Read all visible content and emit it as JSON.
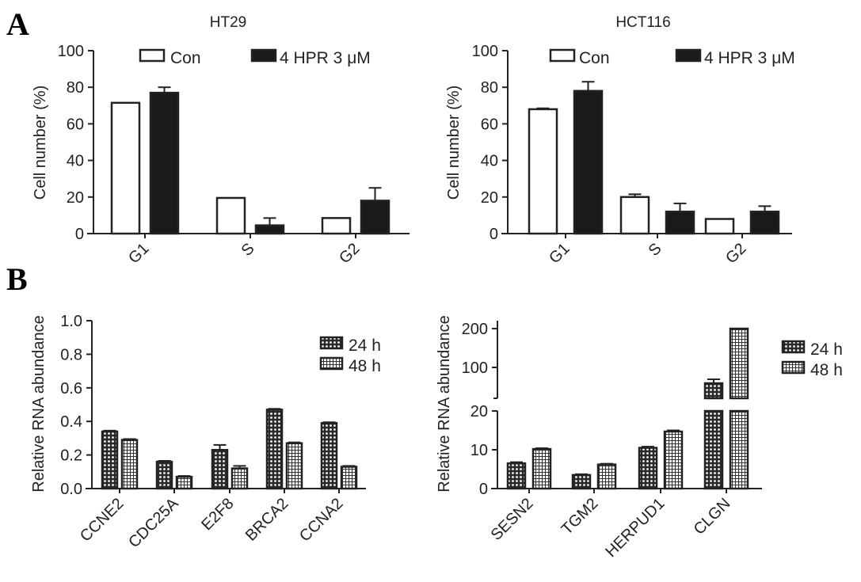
{
  "panel_letters": [
    "A",
    "B"
  ],
  "colors": {
    "axis": "#222222",
    "control_fill": "#ffffff",
    "treated_fill": "#1a1a1a"
  },
  "chart_data": [
    {
      "type": "bar",
      "panel": "A",
      "title": "HT29",
      "ylabel": "Cell number (%)",
      "xlabel": "",
      "categories": [
        "G1",
        "S",
        "G2"
      ],
      "ylim": [
        0,
        100
      ],
      "yticks": [
        "0",
        "20",
        "40",
        "60",
        "80",
        "100"
      ],
      "ytick_values": [
        0,
        20,
        40,
        60,
        80,
        100
      ],
      "legend_position": "top",
      "series": [
        {
          "name": "Con",
          "values": [
            71.5,
            19.5,
            8.5
          ],
          "errors": [
            0,
            0,
            0
          ],
          "style": "open"
        },
        {
          "name": "4 HPR 3 μM",
          "values": [
            77,
            4.5,
            18
          ],
          "errors": [
            3,
            4,
            7
          ],
          "style": "solid"
        }
      ]
    },
    {
      "type": "bar",
      "panel": "A",
      "title": "HCT116",
      "ylabel": "Cell number (%)",
      "xlabel": "",
      "categories": [
        "G1",
        "S",
        "G2"
      ],
      "ylim": [
        0,
        100
      ],
      "yticks": [
        "0",
        "20",
        "40",
        "60",
        "80",
        "100"
      ],
      "ytick_values": [
        0,
        20,
        40,
        60,
        80,
        100
      ],
      "legend_position": "top",
      "series": [
        {
          "name": "Con",
          "values": [
            68,
            20,
            8
          ],
          "errors": [
            0.5,
            1.5,
            0
          ],
          "style": "open"
        },
        {
          "name": "4 HPR 3 μM",
          "values": [
            78,
            12,
            12
          ],
          "errors": [
            5,
            4.5,
            3
          ],
          "style": "solid"
        }
      ]
    },
    {
      "type": "bar",
      "panel": "B",
      "title": "",
      "ylabel": "Relative RNA abundance",
      "xlabel": "",
      "categories": [
        "CCNE2",
        "CDC25A",
        "E2F8",
        "BRCA2",
        "CCNA2"
      ],
      "ylim": [
        0,
        1.0
      ],
      "yticks": [
        "0.0",
        "0.2",
        "0.4",
        "0.6",
        "0.8",
        "1.0"
      ],
      "ytick_values": [
        0,
        0.2,
        0.4,
        0.6,
        0.8,
        1.0
      ],
      "legend_position": "top-right",
      "series": [
        {
          "name": "24 h",
          "values": [
            0.34,
            0.16,
            0.23,
            0.47,
            0.39
          ],
          "errors": [
            0.005,
            0.005,
            0.03,
            0.005,
            0.005
          ],
          "style": "crosshatch"
        },
        {
          "name": "48 h",
          "values": [
            0.29,
            0.07,
            0.12,
            0.27,
            0.13
          ],
          "errors": [
            0.005,
            0.005,
            0.015,
            0.005,
            0.005
          ],
          "style": "grid"
        }
      ]
    },
    {
      "type": "bar",
      "panel": "B",
      "title": "",
      "ylabel": "Relative RNA abundance",
      "xlabel": "",
      "categories": [
        "SESN2",
        "TGM2",
        "HERPUD1",
        "CLGN"
      ],
      "ylim": [
        0,
        200
      ],
      "axis_break": [
        20,
        22
      ],
      "yticks": [
        "0",
        "10",
        "20",
        "100",
        "200"
      ],
      "ytick_values": [
        0,
        10,
        20,
        100,
        200
      ],
      "legend_position": "right",
      "series": [
        {
          "name": "24 h",
          "values": [
            6.5,
            3.5,
            10.5,
            60
          ],
          "errors": [
            0.3,
            0.2,
            0.3,
            10
          ],
          "style": "crosshatch"
        },
        {
          "name": "48 h",
          "values": [
            10.2,
            6.2,
            14.7,
            200
          ],
          "errors": [
            0.2,
            0.2,
            0.3,
            0
          ],
          "style": "grid"
        }
      ]
    }
  ]
}
